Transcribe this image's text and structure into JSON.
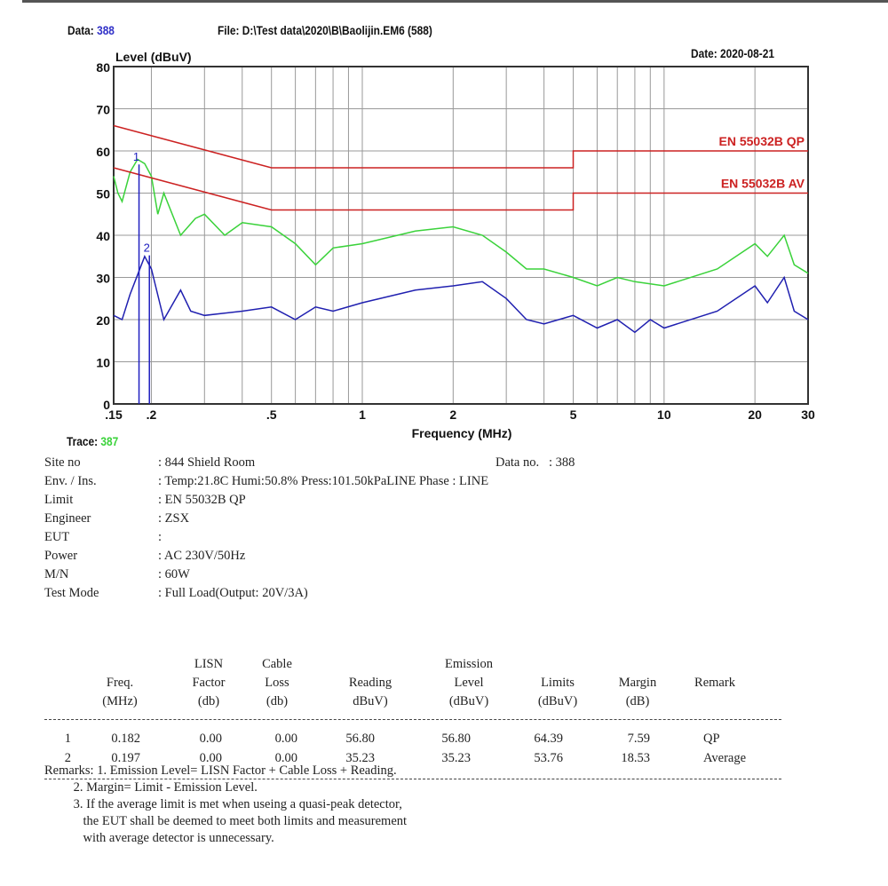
{
  "header": {
    "data_label": "Data:",
    "data_value": "388",
    "file": "File: D:\\Test data\\2020\\B\\Baolijin.EM6  (588)",
    "date": "Date: 2020-08-21",
    "trace_label": "Trace:",
    "trace_value": "387"
  },
  "chart_data": {
    "type": "line",
    "ylabel": "Level (dBuV)",
    "xlabel": "Frequency (MHz)",
    "xscale": "log",
    "xlim": [
      0.15,
      30
    ],
    "ylim": [
      0,
      80
    ],
    "grid": true,
    "yticks": [
      0,
      10,
      20,
      30,
      40,
      50,
      60,
      70,
      80
    ],
    "xticks": [
      {
        "v": 0.15,
        "l": ".15"
      },
      {
        "v": 0.2,
        "l": ".2"
      },
      {
        "v": 0.5,
        "l": ".5"
      },
      {
        "v": 1,
        "l": "1"
      },
      {
        "v": 2,
        "l": "2"
      },
      {
        "v": 5,
        "l": "5"
      },
      {
        "v": 10,
        "l": "10"
      },
      {
        "v": 20,
        "l": "20"
      },
      {
        "v": 30,
        "l": "30"
      }
    ],
    "xgrid": [
      0.2,
      0.3,
      0.4,
      0.5,
      0.6,
      0.7,
      0.8,
      0.9,
      1,
      2,
      3,
      4,
      5,
      6,
      7,
      8,
      9,
      10,
      20
    ],
    "limits": [
      {
        "name": "EN 55032B QP",
        "color": "#cc2222",
        "points": [
          [
            0.15,
            66
          ],
          [
            0.5,
            56
          ],
          [
            5,
            56
          ],
          [
            5,
            60
          ],
          [
            30,
            60
          ]
        ]
      },
      {
        "name": "EN 55032B AV",
        "color": "#cc2222",
        "points": [
          [
            0.15,
            56
          ],
          [
            0.5,
            46
          ],
          [
            5,
            46
          ],
          [
            5,
            50
          ],
          [
            30,
            50
          ]
        ]
      }
    ],
    "series": [
      {
        "color": "#3ad23a",
        "points": [
          [
            0.15,
            54
          ],
          [
            0.155,
            50
          ],
          [
            0.16,
            48
          ],
          [
            0.17,
            55
          ],
          [
            0.18,
            58
          ],
          [
            0.19,
            57
          ],
          [
            0.2,
            54
          ],
          [
            0.21,
            45
          ],
          [
            0.22,
            50
          ],
          [
            0.25,
            40
          ],
          [
            0.28,
            44
          ],
          [
            0.3,
            45
          ],
          [
            0.35,
            40
          ],
          [
            0.4,
            43
          ],
          [
            0.5,
            42
          ],
          [
            0.6,
            38
          ],
          [
            0.7,
            33
          ],
          [
            0.8,
            37
          ],
          [
            1,
            38
          ],
          [
            1.5,
            41
          ],
          [
            2,
            42
          ],
          [
            2.5,
            40
          ],
          [
            3,
            36
          ],
          [
            3.5,
            32
          ],
          [
            4,
            32
          ],
          [
            5,
            30
          ],
          [
            6,
            28
          ],
          [
            7,
            30
          ],
          [
            8,
            29
          ],
          [
            10,
            28
          ],
          [
            15,
            32
          ],
          [
            20,
            38
          ],
          [
            22,
            35
          ],
          [
            25,
            40
          ],
          [
            27,
            33
          ],
          [
            30,
            31
          ]
        ]
      },
      {
        "color": "#2020b0",
        "points": [
          [
            0.15,
            21
          ],
          [
            0.16,
            20
          ],
          [
            0.17,
            26
          ],
          [
            0.19,
            35
          ],
          [
            0.2,
            32
          ],
          [
            0.22,
            20
          ],
          [
            0.25,
            27
          ],
          [
            0.27,
            22
          ],
          [
            0.3,
            21
          ],
          [
            0.4,
            22
          ],
          [
            0.5,
            23
          ],
          [
            0.6,
            20
          ],
          [
            0.7,
            23
          ],
          [
            0.8,
            22
          ],
          [
            1,
            24
          ],
          [
            1.5,
            27
          ],
          [
            2,
            28
          ],
          [
            2.5,
            29
          ],
          [
            3,
            25
          ],
          [
            3.5,
            20
          ],
          [
            4,
            19
          ],
          [
            5,
            21
          ],
          [
            6,
            18
          ],
          [
            7,
            20
          ],
          [
            8,
            17
          ],
          [
            9,
            20
          ],
          [
            10,
            18
          ],
          [
            15,
            22
          ],
          [
            20,
            28
          ],
          [
            22,
            24
          ],
          [
            25,
            30
          ],
          [
            27,
            22
          ],
          [
            30,
            20
          ]
        ]
      }
    ],
    "markers": [
      {
        "label": "1",
        "freq": 0.182,
        "level": 56.8
      },
      {
        "label": "2",
        "freq": 0.197,
        "level": 35.23
      }
    ]
  },
  "info": [
    {
      "k": "Site no",
      "v": ": 844 Shield Room",
      "extra": "Data no.   : 388"
    },
    {
      "k": "Env. / Ins.",
      "v": ": Temp:21.8C Humi:50.8% Press:101.50kPaLINE Phase : LINE"
    },
    {
      "k": "Limit",
      "v": ": EN 55032B QP"
    },
    {
      "k": "Engineer",
      "v": ": ZSX"
    },
    {
      "k": "EUT",
      "v": ":"
    },
    {
      "k": "Power",
      "v": ": AC 230V/50Hz"
    },
    {
      "k": "M/N",
      "v": ": 60W"
    },
    {
      "k": "Test Mode",
      "v": ": Full Load(Output: 20V/3A)"
    }
  ],
  "table": {
    "headers": [
      [
        "",
        "Freq.",
        "(MHz)"
      ],
      [
        "LISN",
        "Factor",
        "(db)"
      ],
      [
        "Cable",
        "Loss",
        "(db)"
      ],
      [
        "",
        "Reading",
        "dBuV)"
      ],
      [
        "Emission",
        "Level",
        "(dBuV)"
      ],
      [
        "",
        "Limits",
        "(dBuV)"
      ],
      [
        "",
        "Margin",
        "(dB)"
      ],
      [
        "",
        "Remark",
        ""
      ]
    ],
    "rows": [
      [
        "1",
        "0.182",
        "0.00",
        "0.00",
        "56.80",
        "56.80",
        "64.39",
        "7.59",
        "QP"
      ],
      [
        "2",
        "0.197",
        "0.00",
        "0.00",
        "35.23",
        "35.23",
        "53.76",
        "18.53",
        "Average"
      ]
    ]
  },
  "remarks": [
    "Remarks: 1. Emission Level= LISN Factor + Cable Loss + Reading.",
    "         2. Margin= Limit - Emission Level.",
    "         3. If the average limit is met when useing a quasi-peak detector,",
    "            the EUT shall be deemed to meet both limits and measurement",
    "            with average detector is unnecessary."
  ]
}
